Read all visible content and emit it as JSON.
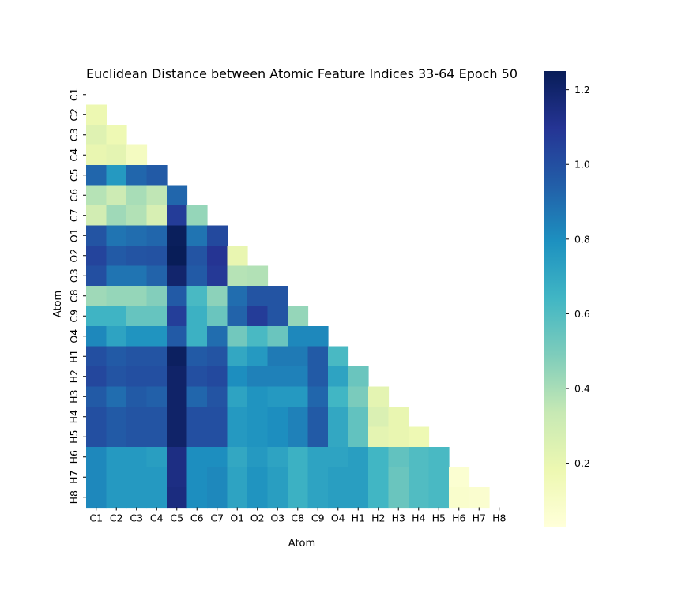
{
  "chart_data": {
    "type": "heatmap",
    "title": "Euclidean Distance between Atomic Feature Indices 33-64 Epoch 50",
    "xlabel": "Atom",
    "ylabel": "Atom",
    "labels": [
      "C1",
      "C2",
      "C3",
      "C4",
      "C5",
      "C6",
      "C7",
      "O1",
      "O2",
      "O3",
      "C8",
      "C9",
      "O4",
      "H1",
      "H2",
      "H3",
      "H4",
      "H5",
      "H6",
      "H7",
      "H8"
    ],
    "mask": "upper-triangle-including-diagonal",
    "colormap": "YlGnBu",
    "vmin": 0.03,
    "vmax": 1.25,
    "colorbar_ticks": [
      0.2,
      0.4,
      0.6,
      0.8,
      1.0,
      1.2
    ],
    "colorbar_tick_labels": [
      "0.2",
      "0.4",
      "0.6",
      "0.8",
      "1.0",
      "1.2"
    ],
    "values": [
      [],
      [
        0.18
      ],
      [
        0.24,
        0.17
      ],
      [
        0.2,
        0.22,
        0.12
      ],
      [
        0.92,
        0.76,
        0.92,
        0.96
      ],
      [
        0.37,
        0.31,
        0.4,
        0.35,
        0.92
      ],
      [
        0.29,
        0.42,
        0.38,
        0.27,
        1.07,
        0.44
      ],
      [
        0.98,
        0.88,
        0.9,
        0.92,
        1.24,
        0.88,
        1.02
      ],
      [
        1.04,
        0.96,
        0.98,
        0.99,
        1.25,
        0.98,
        1.1,
        0.2
      ],
      [
        1.0,
        0.88,
        0.88,
        0.93,
        1.2,
        0.96,
        1.08,
        0.37,
        0.38
      ],
      [
        0.42,
        0.44,
        0.44,
        0.48,
        0.96,
        0.62,
        0.46,
        0.9,
        0.98,
        0.98
      ],
      [
        0.65,
        0.65,
        0.55,
        0.55,
        1.06,
        0.66,
        0.54,
        0.93,
        1.07,
        0.98,
        0.44
      ],
      [
        0.82,
        0.72,
        0.78,
        0.78,
        0.96,
        0.66,
        0.9,
        0.52,
        0.62,
        0.54,
        0.82,
        0.82
      ],
      [
        1.0,
        0.96,
        0.98,
        0.98,
        1.23,
        0.96,
        0.98,
        0.7,
        0.76,
        0.86,
        0.86,
        0.96,
        0.62
      ],
      [
        1.03,
        0.98,
        1.0,
        1.0,
        1.21,
        1.0,
        1.02,
        0.8,
        0.84,
        0.84,
        0.84,
        0.96,
        0.72,
        0.54
      ],
      [
        0.96,
        0.9,
        0.96,
        0.94,
        1.21,
        0.92,
        0.98,
        0.72,
        0.78,
        0.76,
        0.76,
        0.92,
        0.64,
        0.5,
        0.22
      ],
      [
        1.0,
        0.96,
        0.98,
        0.98,
        1.21,
        1.0,
        1.0,
        0.76,
        0.78,
        0.8,
        0.84,
        0.96,
        0.7,
        0.56,
        0.26,
        0.2
      ],
      [
        1.0,
        0.96,
        0.98,
        0.98,
        1.21,
        1.0,
        1.0,
        0.76,
        0.78,
        0.8,
        0.84,
        0.96,
        0.7,
        0.56,
        0.22,
        0.2,
        0.17
      ],
      [
        0.82,
        0.76,
        0.76,
        0.74,
        1.14,
        0.8,
        0.8,
        0.7,
        0.76,
        0.72,
        0.66,
        0.72,
        0.72,
        0.74,
        0.64,
        0.56,
        0.6,
        0.62
      ],
      [
        0.82,
        0.76,
        0.76,
        0.76,
        1.14,
        0.8,
        0.82,
        0.72,
        0.78,
        0.74,
        0.66,
        0.72,
        0.74,
        0.74,
        0.64,
        0.54,
        0.6,
        0.62,
        0.06
      ],
      [
        0.82,
        0.76,
        0.76,
        0.76,
        1.15,
        0.8,
        0.82,
        0.72,
        0.78,
        0.74,
        0.66,
        0.72,
        0.74,
        0.74,
        0.64,
        0.54,
        0.6,
        0.62,
        0.08,
        0.07
      ]
    ]
  }
}
